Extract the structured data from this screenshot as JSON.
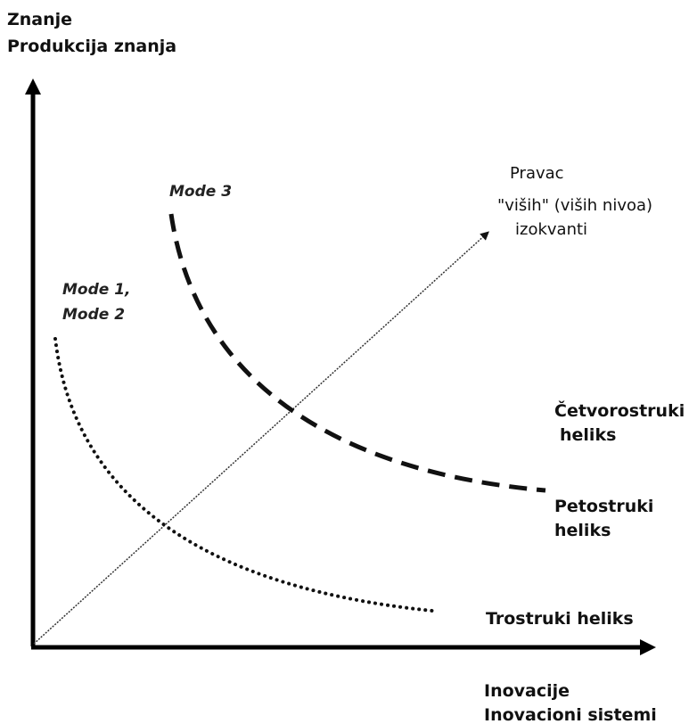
{
  "y_axis": {
    "lines": [
      "Znanje",
      "Produkcija znanja"
    ]
  },
  "x_axis": {
    "lines": [
      "Inovacije",
      "Inovacioni sistemi"
    ]
  },
  "direction": {
    "lines": [
      "Pravac",
      "\"viših\" (viših nivoa)",
      "izokvanti"
    ]
  },
  "curves": [
    {
      "mode": [
        "Mode 1,",
        "Mode 2"
      ],
      "label": [
        "Trostruki heliks"
      ]
    },
    {
      "mode": [
        "Mode 3"
      ],
      "label": [
        "Četvorostruki",
        "heliks",
        "Petostruki",
        "heliks"
      ]
    }
  ]
}
